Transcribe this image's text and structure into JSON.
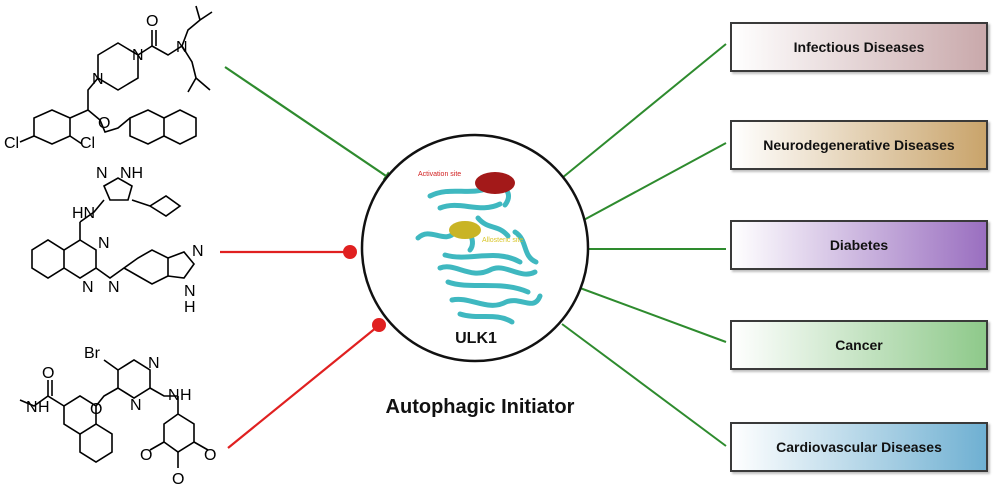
{
  "center": {
    "target_label": "ULK1",
    "caption": "Autophagic Initiator",
    "activation_site_label": "Activation site",
    "allosteric_site_label": "Allosteric site"
  },
  "diseases": [
    {
      "label": "Infectious Diseases",
      "color": "#c9a9ab"
    },
    {
      "label": "Neurodegenerative Diseases",
      "color": "#c9a46b"
    },
    {
      "label": "Diabetes",
      "color": "#9a6fc0"
    },
    {
      "label": "Cancer",
      "color": "#8ec98a"
    },
    {
      "label": "Cardiovascular Diseases",
      "color": "#6fb0d2"
    }
  ],
  "compounds": {
    "compound1": {
      "atoms": [
        "O",
        "N",
        "N",
        "N",
        "O",
        "Cl",
        "Cl"
      ],
      "connector": "activator-arrow",
      "connector_color": "#2e8b2e"
    },
    "compound2": {
      "atoms": [
        "N",
        "NH",
        "HN",
        "N",
        "N",
        "N",
        "N",
        "N",
        "N",
        "H"
      ],
      "connector": "inhibitor",
      "connector_color": "#e02020"
    },
    "compound3": {
      "atoms": [
        "Br",
        "N",
        "N",
        "O",
        "N",
        "H",
        "O",
        "N",
        "H",
        "O",
        "O",
        "O"
      ],
      "connector": "inhibitor",
      "connector_color": "#e02020"
    }
  },
  "colors": {
    "activation": "#2e8b2e",
    "inhibition": "#e02020",
    "protein": "#3fb8c0",
    "disease_links": "#2e8b2e"
  }
}
